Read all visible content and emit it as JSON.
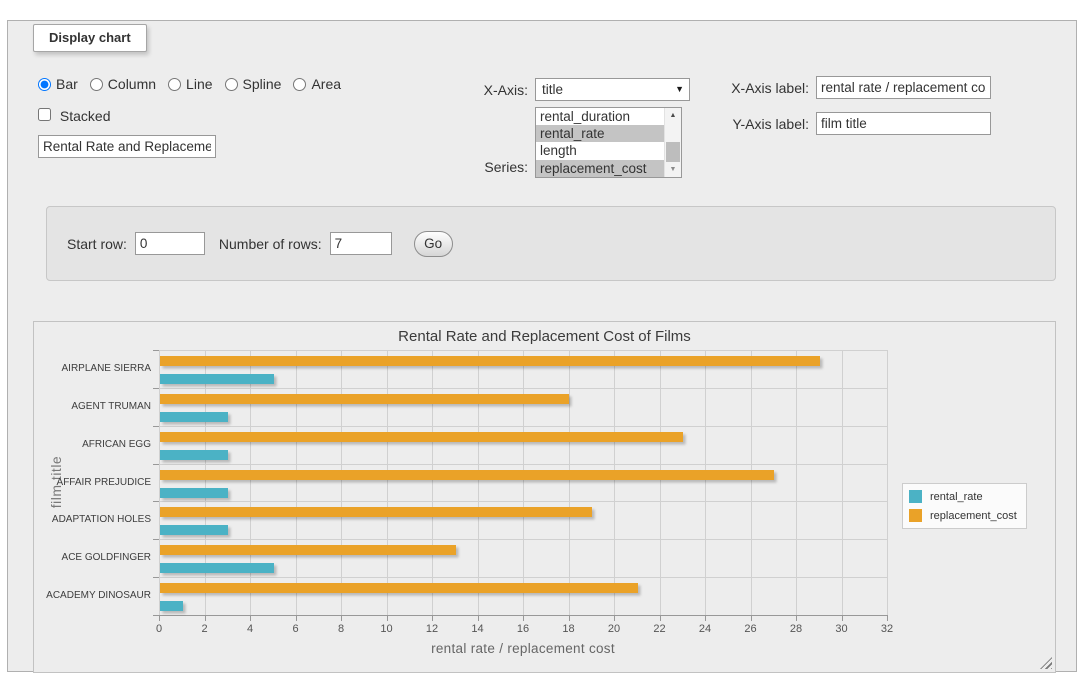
{
  "panel": {
    "legend": "Display chart"
  },
  "icons": {
    "dropdown": "▼",
    "scroll_up": "▲",
    "scroll_down": "▼"
  },
  "chart_type": {
    "options": [
      {
        "label": "Bar",
        "selected": true
      },
      {
        "label": "Column",
        "selected": false
      },
      {
        "label": "Line",
        "selected": false
      },
      {
        "label": "Spline",
        "selected": false
      },
      {
        "label": "Area",
        "selected": false
      }
    ]
  },
  "stacked": {
    "label": "Stacked",
    "checked": false
  },
  "title_input": {
    "value": "Rental Rate and Replacement Cost of Films"
  },
  "x_axis": {
    "label": "X-Axis:",
    "selected_value": "title"
  },
  "series_select": {
    "label": "Series:",
    "options": [
      {
        "label": "rental_duration",
        "selected": false
      },
      {
        "label": "rental_rate",
        "selected": true
      },
      {
        "label": "length",
        "selected": false
      },
      {
        "label": "replacement_cost",
        "selected": true
      }
    ]
  },
  "x_axis_label": {
    "label": "X-Axis label:",
    "value": "rental rate / replacement cost"
  },
  "y_axis_label": {
    "label": "Y-Axis label:",
    "value": "film title"
  },
  "row_controls": {
    "start_row_label": "Start row:",
    "start_row_value": "0",
    "num_rows_label": "Number of rows:",
    "num_rows_value": "7",
    "go_label": "Go"
  },
  "chart_data": {
    "type": "bar",
    "orientation": "horizontal",
    "title": "Rental Rate and Replacement Cost of Films",
    "xlabel": "rental rate / replacement cost",
    "ylabel": "film title",
    "categories": [
      "AIRPLANE SIERRA",
      "AGENT TRUMAN",
      "AFRICAN EGG",
      "AFFAIR PREJUDICE",
      "ADAPTATION HOLES",
      "ACE GOLDFINGER",
      "ACADEMY DINOSAUR"
    ],
    "series": [
      {
        "name": "rental_rate",
        "color": "#4bb2c5",
        "values": [
          4.99,
          2.99,
          2.99,
          2.99,
          2.99,
          4.99,
          0.99
        ]
      },
      {
        "name": "replacement_cost",
        "color": "#EAA228",
        "values": [
          28.99,
          17.99,
          22.99,
          26.99,
          18.99,
          12.99,
          20.99
        ]
      }
    ],
    "xlim": [
      0,
      32
    ],
    "xtick_step": 2,
    "grid": true,
    "legend_position": "right",
    "bar_row_order": "second_series_on_top"
  }
}
